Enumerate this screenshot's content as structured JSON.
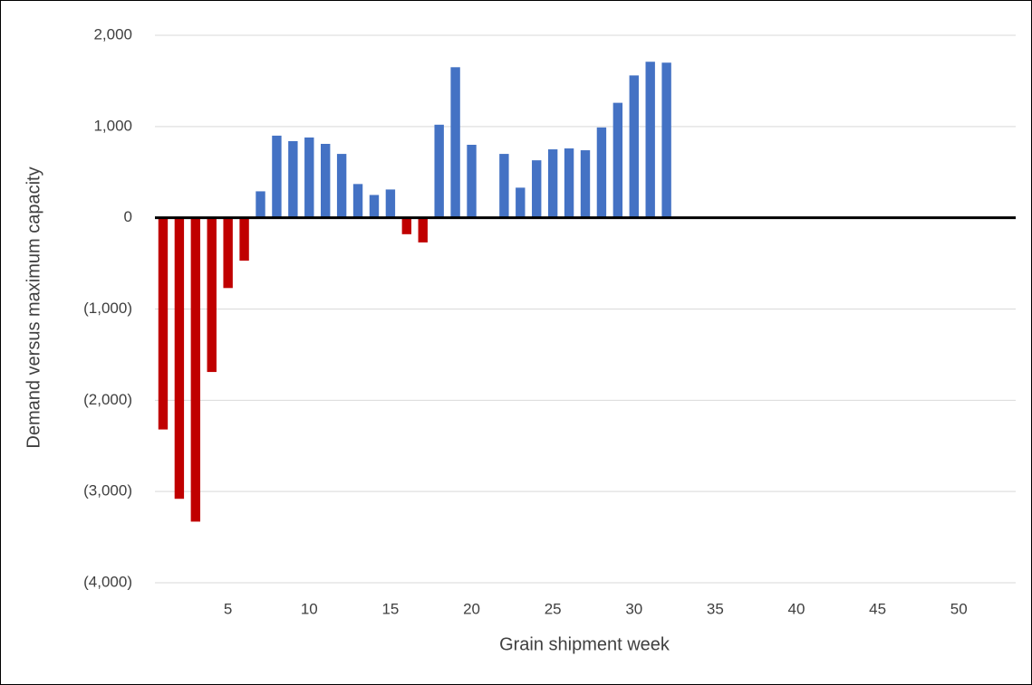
{
  "chart_data": {
    "type": "bar",
    "x_label": "Grain shipment week",
    "y_label": "Demand versus maximum capacity",
    "x": [
      1,
      2,
      3,
      4,
      5,
      6,
      7,
      8,
      9,
      10,
      11,
      12,
      13,
      14,
      15,
      16,
      17,
      18,
      19,
      20,
      21,
      22,
      23,
      24,
      25,
      26,
      27,
      28,
      29,
      30,
      31,
      32
    ],
    "values": [
      -2320,
      -3080,
      -3330,
      -1690,
      -770,
      -470,
      290,
      900,
      840,
      880,
      810,
      700,
      370,
      250,
      310,
      -180,
      -270,
      1020,
      1650,
      800,
      null,
      700,
      330,
      630,
      750,
      760,
      740,
      990,
      1260,
      1560,
      1710,
      1700
    ],
    "positive_color": "#4472c4",
    "negative_color": "#c00000",
    "xlim": [
      0.5,
      53.5
    ],
    "xticks": [
      5,
      10,
      15,
      20,
      25,
      30,
      35,
      40,
      45,
      50
    ],
    "ylim": [
      -4000,
      2000
    ],
    "yticks": [
      {
        "value": 2000,
        "label": "2,000"
      },
      {
        "value": 1000,
        "label": "1,000"
      },
      0,
      {
        "value": -1000,
        "label": "(1,000)"
      },
      {
        "value": -2000,
        "label": "(2,000)"
      },
      {
        "value": -3000,
        "label": "(3,000)"
      },
      {
        "value": -4000,
        "label": "(4,000)"
      }
    ],
    "grid": true
  }
}
